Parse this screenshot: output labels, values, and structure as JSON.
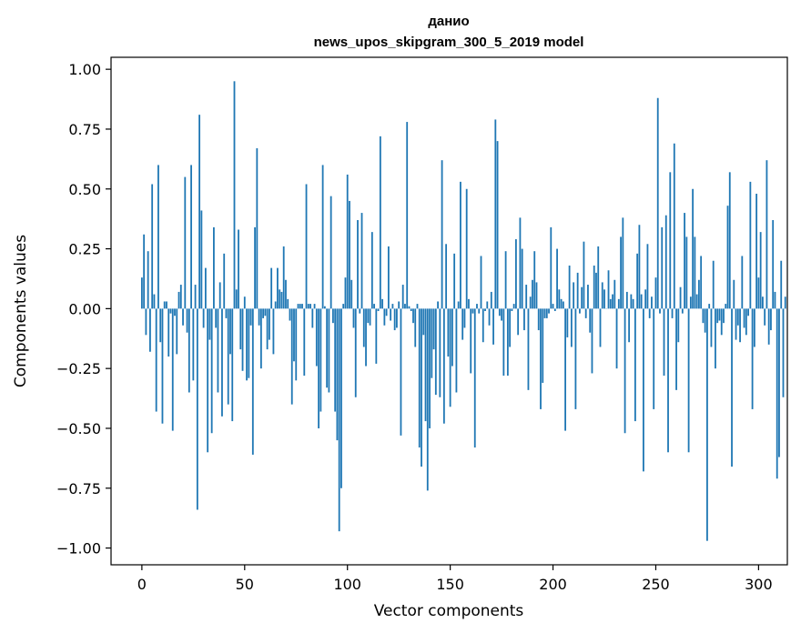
{
  "chart_data": {
    "type": "bar",
    "title_lines": [
      "данио",
      "news_upos_skipgram_300_5_2019 model"
    ],
    "xlabel": "Vector components",
    "ylabel": "Components values",
    "xlim": [
      -15,
      314
    ],
    "ylim": [
      -1.07,
      1.05
    ],
    "xticks": [
      0,
      50,
      100,
      150,
      200,
      250,
      300
    ],
    "yticks": [
      1.0,
      0.75,
      0.5,
      0.25,
      0.0,
      -0.25,
      -0.5,
      -0.75,
      -1.0
    ],
    "ytick_labels": [
      "1.00",
      "0.75",
      "0.50",
      "0.25",
      "0.00",
      "−0.25",
      "−0.50",
      "−0.75",
      "−1.00"
    ],
    "grid": false,
    "bar_color": "#1f77b4",
    "values": [
      0.13,
      0.31,
      -0.11,
      0.24,
      -0.18,
      0.52,
      0.06,
      -0.43,
      0.6,
      -0.14,
      -0.48,
      0.03,
      0.03,
      -0.2,
      -0.02,
      -0.51,
      -0.03,
      -0.19,
      0.07,
      0.1,
      -0.07,
      0.55,
      -0.1,
      -0.35,
      0.6,
      -0.3,
      0.1,
      -0.84,
      0.81,
      0.41,
      -0.08,
      0.17,
      -0.6,
      -0.13,
      -0.52,
      0.34,
      -0.08,
      -0.35,
      0.11,
      -0.45,
      0.23,
      -0.04,
      -0.4,
      -0.19,
      -0.47,
      0.95,
      0.08,
      0.33,
      -0.17,
      -0.26,
      0.05,
      -0.3,
      -0.29,
      -0.07,
      -0.61,
      0.34,
      0.67,
      -0.07,
      -0.25,
      -0.04,
      -0.03,
      -0.17,
      -0.13,
      0.17,
      -0.19,
      0.03,
      0.17,
      0.08,
      0.07,
      0.26,
      0.12,
      0.04,
      -0.05,
      -0.4,
      -0.22,
      -0.3,
      0.02,
      0.02,
      0.02,
      -0.28,
      0.52,
      0.02,
      0.02,
      -0.08,
      0.02,
      -0.24,
      -0.5,
      -0.43,
      0.6,
      0.01,
      -0.33,
      -0.35,
      0.47,
      -0.06,
      -0.43,
      -0.55,
      -0.93,
      -0.75,
      0.02,
      0.13,
      0.56,
      0.45,
      0.12,
      -0.08,
      -0.37,
      0.37,
      -0.02,
      0.4,
      -0.16,
      -0.24,
      -0.06,
      -0.07,
      0.32,
      0.02,
      -0.23,
      -0.01,
      0.72,
      0.04,
      -0.07,
      -0.03,
      0.26,
      -0.05,
      0.02,
      -0.09,
      -0.08,
      0.03,
      -0.53,
      0.1,
      0.02,
      0.78,
      0.01,
      -0.01,
      -0.06,
      -0.16,
      0.02,
      -0.58,
      -0.66,
      -0.11,
      -0.47,
      -0.76,
      -0.5,
      -0.29,
      -0.17,
      -0.36,
      0.03,
      -0.37,
      0.62,
      -0.48,
      0.27,
      -0.2,
      -0.41,
      -0.24,
      0.23,
      -0.35,
      0.03,
      0.53,
      -0.13,
      -0.08,
      0.5,
      0.04,
      -0.27,
      -0.02,
      -0.58,
      0.02,
      -0.02,
      0.22,
      -0.14,
      -0.01,
      0.03,
      -0.07,
      0.07,
      -0.15,
      0.79,
      0.7,
      -0.03,
      -0.05,
      -0.28,
      0.24,
      -0.28,
      -0.16,
      -0.01,
      0.02,
      0.29,
      -0.11,
      0.38,
      0.25,
      -0.09,
      0.1,
      -0.34,
      0.05,
      0.12,
      0.24,
      0.11,
      -0.09,
      -0.42,
      -0.31,
      -0.04,
      -0.04,
      -0.02,
      0.34,
      0.02,
      -0.01,
      0.25,
      0.08,
      0.04,
      0.03,
      -0.51,
      -0.12,
      0.18,
      -0.16,
      0.11,
      -0.42,
      0.15,
      -0.02,
      0.09,
      0.28,
      -0.04,
      0.1,
      -0.1,
      -0.27,
      0.18,
      0.15,
      0.26,
      -0.16,
      0.11,
      0.08,
      0.0,
      0.16,
      0.04,
      0.06,
      0.12,
      -0.25,
      0.04,
      0.3,
      0.38,
      -0.52,
      0.07,
      -0.14,
      0.06,
      0.04,
      -0.47,
      0.23,
      0.35,
      0.06,
      -0.68,
      0.08,
      0.27,
      -0.04,
      0.05,
      -0.42,
      0.13,
      0.88,
      -0.02,
      0.34,
      -0.28,
      0.39,
      -0.6,
      0.57,
      -0.04,
      0.69,
      -0.34,
      -0.14,
      0.09,
      -0.02,
      0.4,
      0.3,
      -0.6,
      0.05,
      0.5,
      0.3,
      0.06,
      0.12,
      0.22,
      -0.06,
      -0.1,
      -0.97,
      0.02,
      -0.16,
      0.2,
      -0.25,
      -0.06,
      -0.05,
      -0.11,
      -0.06,
      0.02,
      0.43,
      0.57,
      -0.66,
      0.12,
      -0.13,
      -0.07,
      -0.14,
      0.22,
      -0.08,
      -0.11,
      -0.03,
      0.53,
      -0.42,
      -0.16,
      0.48,
      0.13,
      0.32,
      0.05,
      -0.07,
      0.62,
      -0.15,
      -0.09,
      0.37,
      0.07,
      -0.71,
      -0.62,
      0.2,
      -0.37,
      0.05
    ]
  }
}
